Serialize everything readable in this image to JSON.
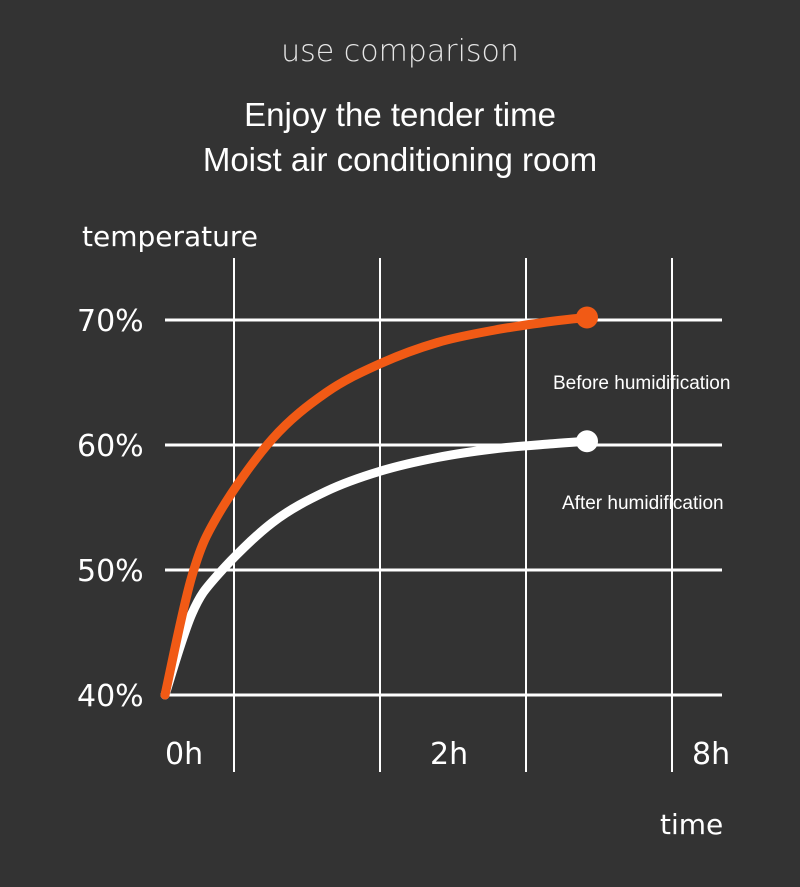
{
  "header": {
    "subtitle": "use comparison",
    "title_line1": "Enjoy the tender time",
    "title_line2": "Moist air conditioning room"
  },
  "colors": {
    "background": "#333333",
    "grid": "#ffffff",
    "before": "#f15a15",
    "after": "#ffffff"
  },
  "chart_data": {
    "type": "line",
    "ylabel": "temperature",
    "xlabel": "time",
    "y_ticks": [
      "40%",
      "50%",
      "60%",
      "70%"
    ],
    "y_values": [
      40,
      50,
      60,
      70
    ],
    "x_ticks": [
      "0h",
      "2h",
      "8h"
    ],
    "ylim": [
      40,
      70
    ],
    "grid": true,
    "series": [
      {
        "name": "Before humidification",
        "color": "#f15a15",
        "x": [
          0,
          0.25,
          0.5,
          1,
          1.5,
          2,
          2.5,
          3,
          3.5,
          3.8
        ],
        "y": [
          40,
          49.5,
          54.5,
          60.5,
          64.2,
          66.5,
          68.2,
          69.2,
          69.9,
          70.2
        ]
      },
      {
        "name": "After humidification",
        "color": "#ffffff",
        "x": [
          0,
          0.25,
          0.5,
          1,
          1.5,
          2,
          2.5,
          3,
          3.5,
          3.8
        ],
        "y": [
          40,
          46.5,
          49.7,
          53.8,
          56.3,
          57.9,
          59,
          59.7,
          60.1,
          60.3
        ]
      }
    ]
  }
}
